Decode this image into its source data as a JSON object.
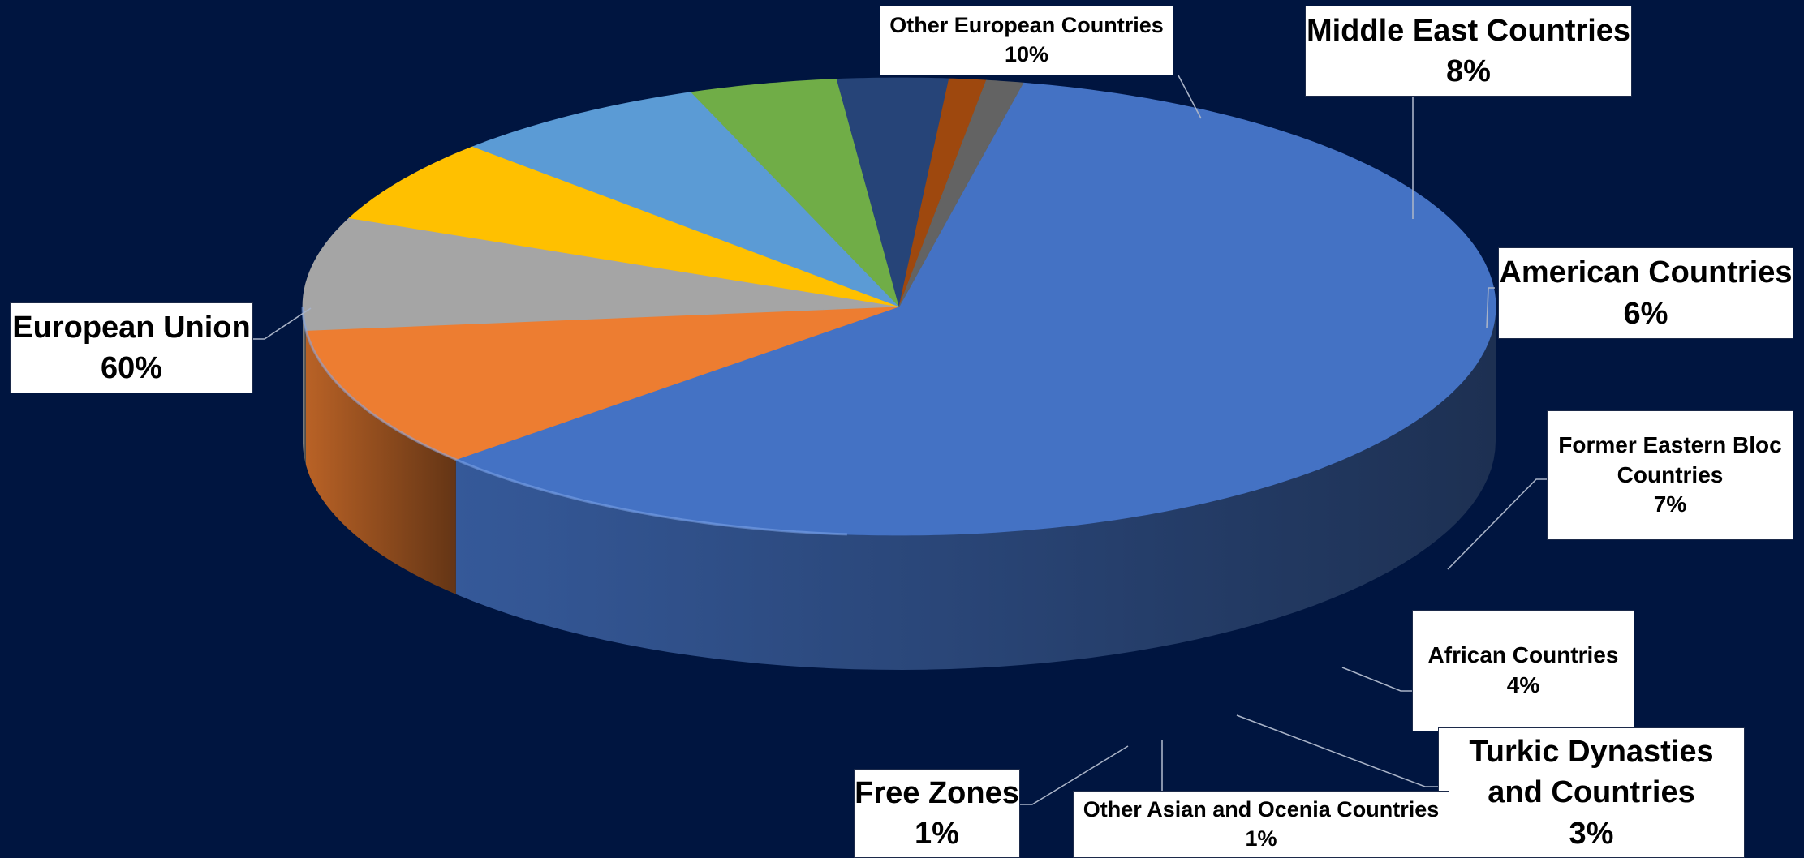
{
  "chart_data": {
    "type": "pie",
    "style": "3d",
    "background": "#001540",
    "slices": [
      {
        "label": "European Union",
        "percent_label": "60%",
        "value": 60,
        "color": "#4472C4"
      },
      {
        "label": "Other European Countries",
        "percent_label": "10%",
        "value": 10,
        "color": "#ED7D31"
      },
      {
        "label": "Middle East Countries",
        "percent_label": "8%",
        "value": 8,
        "color": "#A5A5A5"
      },
      {
        "label": "American Countries",
        "percent_label": "6%",
        "value": 6,
        "color": "#FFC000"
      },
      {
        "label": "Former Eastern Bloc Countries",
        "percent_label": "7%",
        "value": 7,
        "color": "#5B9BD5"
      },
      {
        "label": "African Countries",
        "percent_label": "4%",
        "value": 4,
        "color": "#70AD47"
      },
      {
        "label": "Turkic Dynasties and Countries",
        "percent_label": "3%",
        "value": 3,
        "color": "#264478"
      },
      {
        "label": "Other Asian and Ocenia Countries",
        "percent_label": "1%",
        "value": 1,
        "color": "#9E480E"
      },
      {
        "label": "Free Zones",
        "percent_label": "1%",
        "value": 1,
        "color": "#636363"
      }
    ]
  }
}
